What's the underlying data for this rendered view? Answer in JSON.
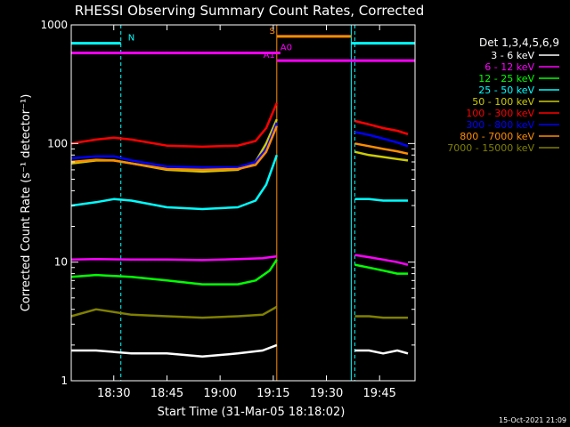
{
  "chart_data": {
    "type": "line",
    "title": "RHESSI Observing Summary Count Rates, Corrected",
    "xlabel": "Start Time (31-Mar-05 18:18:02)",
    "ylabel": "Corrected Count Rate (s⁻¹ detector⁻¹)",
    "timestamp": "15-Oct-2021 21:09",
    "y_scale": "log",
    "ylim": [
      1,
      1000
    ],
    "xlim": [
      "18:18",
      "19:55"
    ],
    "x_ticks": [
      "18:30",
      "18:45",
      "19:00",
      "19:15",
      "19:30",
      "19:45"
    ],
    "y_ticks": [
      "1",
      "10",
      "100",
      "1000"
    ],
    "legend_title": "Det 1,3,4,5,6,9",
    "legend_position": "right",
    "series": [
      {
        "name": "3 - 6 keV",
        "color": "#ffffff",
        "segments": [
          {
            "x": [
              "18:18",
              "18:25",
              "18:35",
              "18:45",
              "18:55",
              "19:05",
              "19:12",
              "19:16"
            ],
            "y": [
              1.8,
              1.8,
              1.7,
              1.7,
              1.6,
              1.7,
              1.8,
              2.0
            ]
          },
          {
            "x": [
              "19:38",
              "19:42",
              "19:46",
              "19:50",
              "19:53"
            ],
            "y": [
              1.8,
              1.8,
              1.7,
              1.8,
              1.7
            ]
          }
        ]
      },
      {
        "name": "6 - 12 keV",
        "color": "#ff00ff",
        "segments": [
          {
            "x": [
              "18:18",
              "18:25",
              "18:35",
              "18:45",
              "18:55",
              "19:05",
              "19:12",
              "19:16"
            ],
            "y": [
              10.5,
              10.6,
              10.5,
              10.5,
              10.4,
              10.6,
              10.8,
              11.2
            ]
          },
          {
            "x": [
              "19:38",
              "19:42",
              "19:46",
              "19:50",
              "19:53"
            ],
            "y": [
              11.5,
              11,
              10.5,
              10,
              9.5
            ]
          }
        ]
      },
      {
        "name": "12 - 25 keV",
        "color": "#00ff00",
        "segments": [
          {
            "x": [
              "18:18",
              "18:25",
              "18:35",
              "18:45",
              "18:55",
              "19:05",
              "19:10",
              "19:14",
              "19:16"
            ],
            "y": [
              7.5,
              7.8,
              7.5,
              7.0,
              6.5,
              6.5,
              7.0,
              8.5,
              10.5
            ]
          },
          {
            "x": [
              "19:38",
              "19:42",
              "19:46",
              "19:50",
              "19:53"
            ],
            "y": [
              9.5,
              9,
              8.5,
              8,
              8
            ]
          }
        ]
      },
      {
        "name": "25 - 50 keV",
        "color": "#00ffff",
        "segments": [
          {
            "x": [
              "18:18",
              "18:25",
              "18:30",
              "18:35",
              "18:45",
              "18:55",
              "19:05",
              "19:10",
              "19:13",
              "19:16"
            ],
            "y": [
              30,
              32,
              34,
              33,
              29,
              28,
              29,
              33,
              45,
              80
            ]
          },
          {
            "x": [
              "19:38",
              "19:42",
              "19:46",
              "19:50",
              "19:53"
            ],
            "y": [
              34,
              34,
              33,
              33,
              33
            ]
          }
        ]
      },
      {
        "name": "50 - 100 keV",
        "color": "#cccc00",
        "segments": [
          {
            "x": [
              "18:18",
              "18:25",
              "18:30",
              "18:35",
              "18:45",
              "18:55",
              "19:05",
              "19:10",
              "19:13",
              "19:16"
            ],
            "y": [
              68,
              72,
              72,
              68,
              60,
              58,
              60,
              70,
              100,
              160
            ]
          },
          {
            "x": [
              "19:38",
              "19:42",
              "19:46",
              "19:50",
              "19:53"
            ],
            "y": [
              85,
              80,
              77,
              74,
              72
            ]
          }
        ]
      },
      {
        "name": "100 - 300 keV",
        "color": "#ff0000",
        "segments": [
          {
            "x": [
              "18:18",
              "18:25",
              "18:30",
              "18:35",
              "18:45",
              "18:55",
              "19:05",
              "19:10",
              "19:13",
              "19:16"
            ],
            "y": [
              100,
              108,
              112,
              108,
              96,
              94,
              96,
              105,
              135,
              220
            ]
          },
          {
            "x": [
              "19:38",
              "19:42",
              "19:46",
              "19:50",
              "19:53"
            ],
            "y": [
              155,
              145,
              135,
              128,
              120
            ]
          }
        ]
      },
      {
        "name": "300 - 800 keV",
        "color": "#0000ff",
        "segments": [
          {
            "x": [
              "18:18",
              "18:25",
              "18:30",
              "18:35",
              "18:45",
              "18:55",
              "19:05",
              "19:10",
              "19:13",
              "19:16"
            ],
            "y": [
              75,
              78,
              78,
              72,
              64,
              63,
              63,
              70,
              90,
              150
            ]
          },
          {
            "x": [
              "19:38",
              "19:42",
              "19:46",
              "19:50",
              "19:53"
            ],
            "y": [
              125,
              118,
              110,
              102,
              95
            ]
          }
        ]
      },
      {
        "name": "800 - 7000 keV",
        "color": "#ff8c00",
        "segments": [
          {
            "x": [
              "18:18",
              "18:25",
              "18:30",
              "18:35",
              "18:45",
              "18:55",
              "19:05",
              "19:10",
              "19:13",
              "19:16"
            ],
            "y": [
              70,
              73,
              72,
              68,
              61,
              60,
              61,
              66,
              85,
              140
            ]
          },
          {
            "x": [
              "19:38",
              "19:42",
              "19:46",
              "19:50",
              "19:53"
            ],
            "y": [
              100,
              95,
              90,
              86,
              82
            ]
          }
        ]
      },
      {
        "name": "7000 - 15000 keV",
        "color": "#808000",
        "segments": [
          {
            "x": [
              "18:18",
              "18:25",
              "18:35",
              "18:45",
              "18:55",
              "19:05",
              "19:12",
              "19:16"
            ],
            "y": [
              3.5,
              4.0,
              3.6,
              3.5,
              3.4,
              3.5,
              3.6,
              4.2
            ]
          },
          {
            "x": [
              "19:38",
              "19:42",
              "19:46",
              "19:50",
              "19:53"
            ],
            "y": [
              3.5,
              3.5,
              3.4,
              3.4,
              3.4
            ]
          }
        ]
      }
    ],
    "annotations": [
      {
        "label": "N",
        "color": "#00ffff",
        "y": 700,
        "x_start": "18:18",
        "x_end": "18:32",
        "x_start_2": "19:37",
        "x_end_2": "19:55"
      },
      {
        "label": "S",
        "color": "#ff8c00",
        "y": 800,
        "x_start": "19:16",
        "x_end": "19:37"
      },
      {
        "label": "A0",
        "color": "#ff00ff",
        "y": 580,
        "x_start": "18:18",
        "x_end": "19:17"
      },
      {
        "label": "A1",
        "color": "#ff00ff",
        "y": 500,
        "x_start": "19:16",
        "x_end": "19:55"
      }
    ],
    "vertical_lines": [
      {
        "x": "18:18",
        "color": "#00ffff",
        "style": "solid"
      },
      {
        "x": "18:32",
        "color": "#00ffff",
        "style": "dashed"
      },
      {
        "x": "19:16",
        "color": "#ff8c00",
        "style": "solid"
      },
      {
        "x": "19:37",
        "color": "#00ffff",
        "style": "solid"
      },
      {
        "x": "19:38",
        "color": "#00ffff",
        "style": "dashed"
      },
      {
        "x": "19:55",
        "color": "#00ffff",
        "style": "dashed"
      }
    ]
  }
}
